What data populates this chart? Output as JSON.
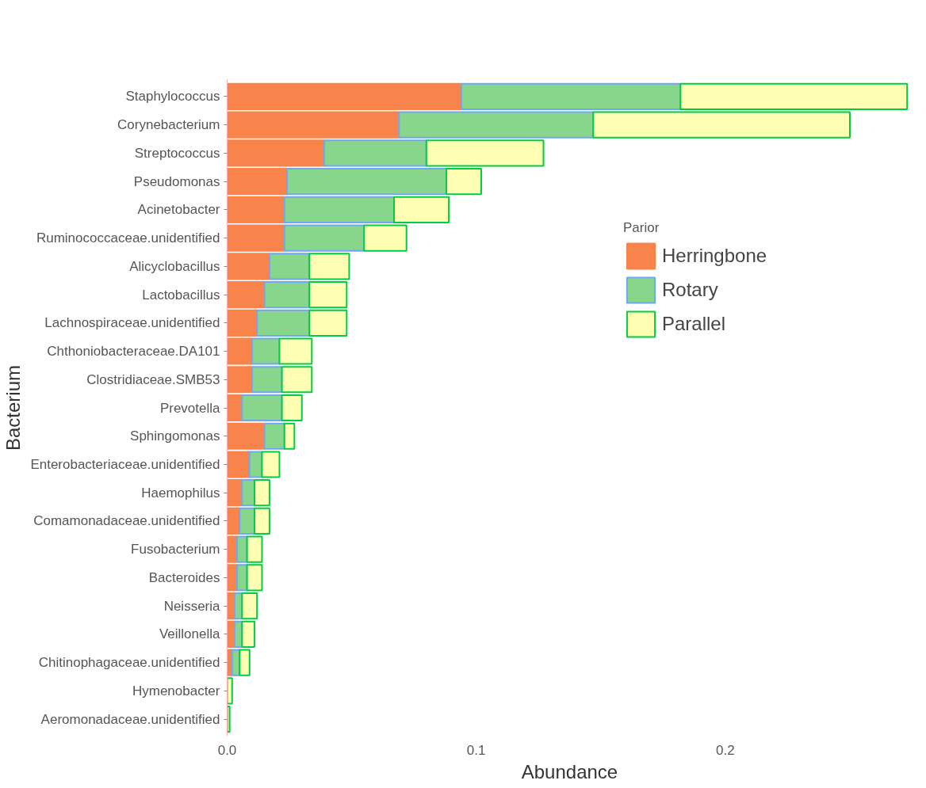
{
  "chart_data": {
    "type": "bar",
    "orientation": "horizontal",
    "stacked": true,
    "xlabel": "Abundance",
    "ylabel": "Bacterium",
    "legend_title": "Parior",
    "legend": "top right",
    "grid": false,
    "categories": [
      "Staphylococcus",
      "Corynebacterium",
      "Streptococcus",
      "Pseudomonas",
      "Acinetobacter",
      "Ruminococcaceae.unidentified",
      "Alicyclobacillus",
      "Lactobacillus",
      "Lachnospiraceae.unidentified",
      "Chthoniobacteraceae.DA101",
      "Clostridiaceae.SMB53",
      "Prevotella",
      "Sphingomonas",
      "Enterobacteriaceae.unidentified",
      "Haemophilus",
      "Comamonadaceae.unidentified",
      "Fusobacterium",
      "Bacteroides",
      "Neisseria",
      "Veillonella",
      "Chitinophagaceae.unidentified",
      "Hymenobacter",
      "Aeromonadaceae.unidentified"
    ],
    "xlim": [
      0,
      0.275
    ],
    "xticks": [
      {
        "value": 0,
        "label": "0.0"
      },
      {
        "value": 0.1,
        "label": "0.1"
      },
      {
        "value": 0.2,
        "label": "0.2"
      }
    ],
    "series": [
      {
        "name": "Herringbone",
        "color": "#f8834b",
        "values": [
          0.094,
          0.069,
          0.039,
          0.024,
          0.023,
          0.023,
          0.017,
          0.015,
          0.012,
          0.01,
          0.01,
          0.006,
          0.015,
          0.009,
          0.006,
          0.005,
          0.004,
          0.004,
          0.003,
          0.003,
          0.002,
          0,
          0
        ]
      },
      {
        "name": "Rotary",
        "color": "#88d68c",
        "values": [
          0.088,
          0.078,
          0.041,
          0.064,
          0.044,
          0.032,
          0.016,
          0.018,
          0.021,
          0.011,
          0.012,
          0.016,
          0.008,
          0.005,
          0.005,
          0.006,
          0.004,
          0.004,
          0.003,
          0.003,
          0.003,
          null,
          0
        ]
      },
      {
        "name": "Parallel",
        "color": "#ffffb3",
        "values": [
          0.091,
          0.103,
          0.047,
          0.014,
          0.022,
          0.017,
          0.016,
          0.015,
          0.015,
          0.013,
          0.012,
          0.008,
          0.004,
          0.007,
          0.006,
          0.006,
          0.006,
          0.006,
          0.006,
          0.005,
          0.004,
          0.002,
          0.001
        ]
      }
    ]
  }
}
